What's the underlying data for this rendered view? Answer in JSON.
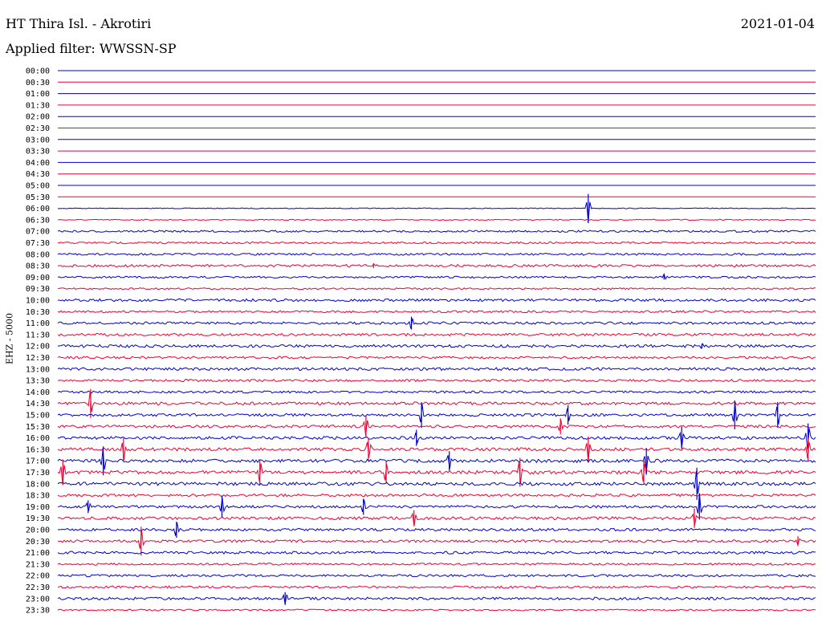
{
  "header": {
    "station": "HT Thira Isl. - Akrotiri",
    "date": "2021-01-04",
    "filter": "Applied filter: WWSSN-SP",
    "channel": "EHZ - 5000"
  },
  "colors": {
    "even_hour": "#0000cc",
    "half_hour": "#ee0033",
    "background": "#ffffff"
  },
  "chart_data": {
    "type": "line",
    "title": "HT Thira Isl. - Akrotiri",
    "ylabel": "EHZ - 5000",
    "row_labels": [
      "00:00",
      "00:30",
      "01:00",
      "01:30",
      "02:00",
      "02:30",
      "03:00",
      "03:30",
      "04:00",
      "04:30",
      "05:00",
      "05:30",
      "06:00",
      "06:30",
      "07:00",
      "07:30",
      "08:00",
      "08:30",
      "09:00",
      "09:30",
      "10:00",
      "10:30",
      "11:00",
      "11:30",
      "12:00",
      "12:30",
      "13:00",
      "13:30",
      "14:00",
      "14:30",
      "15:00",
      "15:30",
      "16:00",
      "16:30",
      "17:00",
      "17:30",
      "18:00",
      "18:30",
      "19:00",
      "19:30",
      "20:00",
      "20:30",
      "21:00",
      "21:30",
      "22:00",
      "22:30",
      "23:00",
      "23:30"
    ],
    "trace_minutes": 30,
    "noise_level": [
      0,
      0,
      0,
      0,
      0,
      0,
      0,
      0,
      0,
      0,
      0,
      0,
      0.5,
      0.6,
      1.2,
      1.2,
      1.3,
      1.5,
      1.2,
      1.0,
      1.6,
      1.3,
      1.6,
      1.6,
      1.8,
      1.4,
      1.7,
      1.4,
      1.4,
      1.8,
      1.6,
      1.6,
      1.8,
      2.0,
      2.0,
      2.0,
      2.0,
      1.6,
      1.6,
      1.8,
      1.6,
      1.6,
      1.6,
      1.3,
      1.4,
      1.4,
      1.6,
      1.0
    ],
    "events": [
      {
        "row": 12,
        "minute": 21.0,
        "amplitude": 18
      },
      {
        "row": 17,
        "minute": 12.5,
        "amplitude": 3
      },
      {
        "row": 18,
        "minute": 24.0,
        "amplitude": 3
      },
      {
        "row": 22,
        "minute": 14.0,
        "amplitude": 8
      },
      {
        "row": 24,
        "minute": 25.5,
        "amplitude": 3
      },
      {
        "row": 29,
        "minute": 1.3,
        "amplitude": 18
      },
      {
        "row": 30,
        "minute": 14.4,
        "amplitude": 16
      },
      {
        "row": 30,
        "minute": 20.2,
        "amplitude": 12
      },
      {
        "row": 30,
        "minute": 28.5,
        "amplitude": 16
      },
      {
        "row": 30,
        "minute": 26.8,
        "amplitude": 18
      },
      {
        "row": 31,
        "minute": 12.2,
        "amplitude": 14
      },
      {
        "row": 31,
        "minute": 19.9,
        "amplitude": 10
      },
      {
        "row": 32,
        "minute": 14.2,
        "amplitude": 10
      },
      {
        "row": 32,
        "minute": 24.7,
        "amplitude": 14
      },
      {
        "row": 32,
        "minute": 29.7,
        "amplitude": 18
      },
      {
        "row": 33,
        "minute": 2.6,
        "amplitude": 14
      },
      {
        "row": 33,
        "minute": 12.3,
        "amplitude": 14
      },
      {
        "row": 33,
        "minute": 21.0,
        "amplitude": 16
      },
      {
        "row": 33,
        "minute": 29.7,
        "amplitude": 14
      },
      {
        "row": 34,
        "minute": 1.8,
        "amplitude": 18
      },
      {
        "row": 34,
        "minute": 15.5,
        "amplitude": 12
      },
      {
        "row": 34,
        "minute": 23.3,
        "amplitude": 16
      },
      {
        "row": 35,
        "minute": 0.2,
        "amplitude": 16
      },
      {
        "row": 35,
        "minute": 8.0,
        "amplitude": 16
      },
      {
        "row": 35,
        "minute": 13.0,
        "amplitude": 14
      },
      {
        "row": 35,
        "minute": 18.3,
        "amplitude": 18
      },
      {
        "row": 35,
        "minute": 23.2,
        "amplitude": 14
      },
      {
        "row": 36,
        "minute": 25.3,
        "amplitude": 20
      },
      {
        "row": 38,
        "minute": 1.2,
        "amplitude": 8
      },
      {
        "row": 38,
        "minute": 6.5,
        "amplitude": 14
      },
      {
        "row": 38,
        "minute": 12.1,
        "amplitude": 10
      },
      {
        "row": 38,
        "minute": 25.4,
        "amplitude": 16
      },
      {
        "row": 39,
        "minute": 14.1,
        "amplitude": 10
      },
      {
        "row": 39,
        "minute": 25.2,
        "amplitude": 12
      },
      {
        "row": 40,
        "minute": 4.7,
        "amplitude": 10
      },
      {
        "row": 41,
        "minute": 3.3,
        "amplitude": 18
      },
      {
        "row": 41,
        "minute": 29.3,
        "amplitude": 6
      },
      {
        "row": 46,
        "minute": 9.0,
        "amplitude": 8
      }
    ]
  }
}
